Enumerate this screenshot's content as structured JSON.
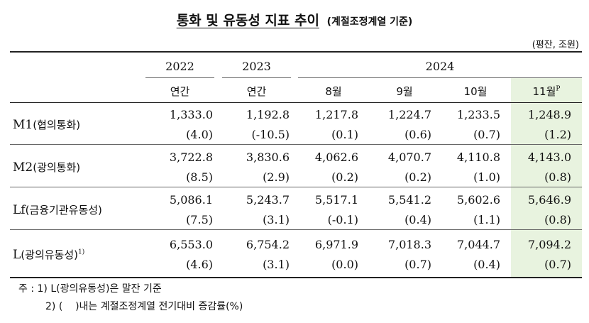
{
  "title": "통화 및 유동성 지표 추이",
  "subtitle": "(계절조정계열 기준)",
  "unit": "(평잔, 조원)",
  "years": [
    "2022",
    "2023",
    "2024"
  ],
  "subheaders": {
    "y2022": "연간",
    "y2023": "연간",
    "aug": "8월",
    "sep": "9월",
    "oct": "10월",
    "nov": "11월",
    "nov_mark": "P"
  },
  "rows": [
    {
      "label": "M1",
      "label_ko": "(협의통화)",
      "sup": "",
      "values": [
        "1,333.0",
        "1,192.8",
        "1,217.8",
        "1,224.7",
        "1,233.5",
        "1,248.9"
      ],
      "rates": [
        "(4.0)",
        "(-10.5)",
        "(0.1)",
        "(0.6)",
        "(0.7)",
        "(1.2)"
      ]
    },
    {
      "label": "M2",
      "label_ko": "(광의통화)",
      "sup": "",
      "values": [
        "3,722.8",
        "3,830.6",
        "4,062.6",
        "4,070.7",
        "4,110.8",
        "4,143.0"
      ],
      "rates": [
        "(8.5)",
        "(2.9)",
        "(0.2)",
        "(0.2)",
        "(1.0)",
        "(0.8)"
      ]
    },
    {
      "label": "Lf",
      "label_ko": "(금융기관유동성)",
      "sup": "",
      "values": [
        "5,086.1",
        "5,243.7",
        "5,517.1",
        "5,541.2",
        "5,602.6",
        "5,646.9"
      ],
      "rates": [
        "(7.5)",
        "(3.1)",
        "(-0.1)",
        "(0.4)",
        "(1.1)",
        "(0.8)"
      ]
    },
    {
      "label": "L",
      "label_ko": "(광의유동성)",
      "sup": "1)",
      "values": [
        "6,553.0",
        "6,754.2",
        "6,971.9",
        "7,018.3",
        "7,044.7",
        "7,094.2"
      ],
      "rates": [
        "(4.6)",
        "(3.1)",
        "(0.0)",
        "(0.7)",
        "(0.4)",
        "(0.7)"
      ]
    }
  ],
  "notes": {
    "line1": "주 : 1) L(광의유동성)은 말잔 기준",
    "line2": "2) (    )내는 계절조정계열 전기대비 증감률(%)"
  },
  "colors": {
    "highlight": "#e8f3df",
    "rule": "#222222"
  }
}
